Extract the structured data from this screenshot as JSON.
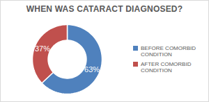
{
  "chart_data": {
    "type": "pie",
    "title": "WHEN WAS CATARACT DIAGNOSED?",
    "categories": [
      "BEFORE COMORBID CONDITION",
      "AFTER COMORBID CONDITION"
    ],
    "values": [
      63,
      37
    ],
    "value_labels": [
      "63%",
      "37%"
    ],
    "colors": [
      "#4f81bd",
      "#c0504d"
    ],
    "data_labels": true,
    "legend": "right"
  }
}
